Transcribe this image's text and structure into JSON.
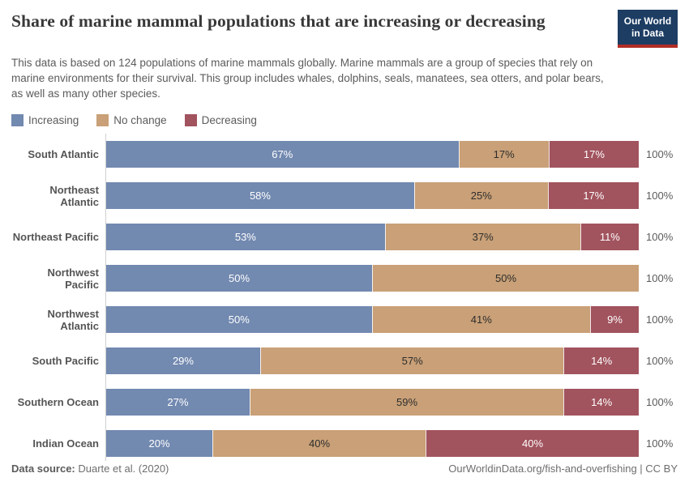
{
  "header": {
    "title": "Share of marine mammal populations that are increasing or decreasing",
    "subtitle": "This data is based on 124 populations of marine mammals globally. Marine mammals are a group of species that rely on marine environments for their survival. This group includes whales, dolphins, seals, manatees, sea otters, and polar bears, as well as many other species.",
    "logo": {
      "line1": "Our World",
      "line2": "in Data"
    }
  },
  "chart_data": {
    "type": "bar",
    "orientation": "horizontal",
    "stacked": true,
    "xlim": [
      0,
      100
    ],
    "value_suffix": "%",
    "total_label": "100%",
    "legend_position": "top-left",
    "grid": false,
    "categories": [
      "South Atlantic",
      "Northeast Atlantic",
      "Northeast Pacific",
      "Northwest Pacific",
      "Northwest Atlantic",
      "South Pacific",
      "Southern Ocean",
      "Indian Ocean"
    ],
    "series": [
      {
        "name": "Increasing",
        "color": "#7289b0",
        "text_color": "#ffffff",
        "values": [
          67,
          58,
          53,
          50,
          50,
          29,
          27,
          20
        ]
      },
      {
        "name": "No change",
        "color": "#c9a077",
        "text_color": "#2d2d2d",
        "values": [
          17,
          25,
          37,
          50,
          41,
          57,
          59,
          40
        ]
      },
      {
        "name": "Decreasing",
        "color": "#a1535e",
        "text_color": "#ffffff",
        "values": [
          17,
          17,
          11,
          0,
          9,
          14,
          14,
          40
        ]
      }
    ]
  },
  "footer": {
    "source_label": "Data source:",
    "source_value": "Duarte et al. (2020)",
    "right_text": "OurWorldinData.org/fish-and-overfishing | CC BY"
  }
}
